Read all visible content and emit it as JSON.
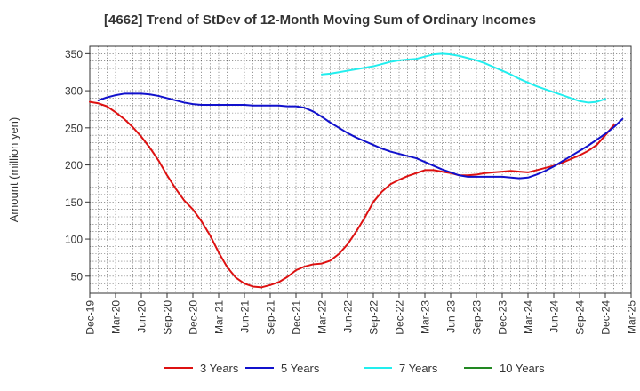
{
  "chart_data": {
    "type": "line",
    "title": "[4662]  Trend of StDev of 12-Month Moving Sum of Ordinary Incomes",
    "xlabel": "",
    "ylabel": "Amount (million yen)",
    "ylim": [
      27,
      360
    ],
    "yticks": [
      50,
      100,
      150,
      200,
      250,
      300,
      350
    ],
    "xlim": [
      "2019-12",
      "2025-03"
    ],
    "xticks": [
      "Dec-19",
      "Mar-20",
      "Jun-20",
      "Sep-20",
      "Dec-20",
      "Mar-21",
      "Jun-21",
      "Sep-21",
      "Dec-21",
      "Mar-22",
      "Jun-22",
      "Sep-22",
      "Dec-22",
      "Mar-23",
      "Jun-23",
      "Sep-23",
      "Dec-23",
      "Mar-24",
      "Jun-24",
      "Sep-24",
      "Dec-24",
      "Mar-25"
    ],
    "grid": true,
    "legend_position": "bottom",
    "series": [
      {
        "name": "3 Years",
        "color": "#dd1111",
        "points": [
          [
            "2019-12",
            285
          ],
          [
            "2020-01",
            283
          ],
          [
            "2020-02",
            279
          ],
          [
            "2020-03",
            271
          ],
          [
            "2020-04",
            262
          ],
          [
            "2020-05",
            251
          ],
          [
            "2020-06",
            238
          ],
          [
            "2020-07",
            223
          ],
          [
            "2020-08",
            206
          ],
          [
            "2020-09",
            186
          ],
          [
            "2020-10",
            168
          ],
          [
            "2020-11",
            152
          ],
          [
            "2020-12",
            140
          ],
          [
            "2021-01",
            124
          ],
          [
            "2021-02",
            105
          ],
          [
            "2021-03",
            82
          ],
          [
            "2021-04",
            62
          ],
          [
            "2021-05",
            48
          ],
          [
            "2021-06",
            40
          ],
          [
            "2021-07",
            36
          ],
          [
            "2021-08",
            35
          ],
          [
            "2021-09",
            38
          ],
          [
            "2021-10",
            42
          ],
          [
            "2021-11",
            49
          ],
          [
            "2021-12",
            58
          ],
          [
            "2022-01",
            63
          ],
          [
            "2022-02",
            66
          ],
          [
            "2022-03",
            67
          ],
          [
            "2022-04",
            71
          ],
          [
            "2022-05",
            80
          ],
          [
            "2022-06",
            93
          ],
          [
            "2022-07",
            110
          ],
          [
            "2022-08",
            129
          ],
          [
            "2022-09",
            150
          ],
          [
            "2022-10",
            164
          ],
          [
            "2022-11",
            174
          ],
          [
            "2022-12",
            180
          ],
          [
            "2023-01",
            185
          ],
          [
            "2023-02",
            189
          ],
          [
            "2023-03",
            193
          ],
          [
            "2023-04",
            193
          ],
          [
            "2023-05",
            191
          ],
          [
            "2023-06",
            189
          ],
          [
            "2023-07",
            186
          ],
          [
            "2023-08",
            186
          ],
          [
            "2023-09",
            187
          ],
          [
            "2023-10",
            189
          ],
          [
            "2023-11",
            190
          ],
          [
            "2023-12",
            191
          ],
          [
            "2024-01",
            192
          ],
          [
            "2024-02",
            191
          ],
          [
            "2024-03",
            190
          ],
          [
            "2024-04",
            193
          ],
          [
            "2024-05",
            196
          ],
          [
            "2024-06",
            199
          ],
          [
            "2024-07",
            203
          ],
          [
            "2024-08",
            208
          ],
          [
            "2024-09",
            213
          ],
          [
            "2024-10",
            219
          ],
          [
            "2024-11",
            227
          ],
          [
            "2024-12",
            240
          ],
          [
            "2025-01",
            254
          ]
        ]
      },
      {
        "name": "5 Years",
        "color": "#1111cc",
        "points": [
          [
            "2020-01",
            287
          ],
          [
            "2020-02",
            291
          ],
          [
            "2020-03",
            294
          ],
          [
            "2020-04",
            296
          ],
          [
            "2020-05",
            296
          ],
          [
            "2020-06",
            296
          ],
          [
            "2020-07",
            295
          ],
          [
            "2020-08",
            293
          ],
          [
            "2020-09",
            290
          ],
          [
            "2020-10",
            287
          ],
          [
            "2020-11",
            284
          ],
          [
            "2020-12",
            282
          ],
          [
            "2021-01",
            281
          ],
          [
            "2021-02",
            281
          ],
          [
            "2021-03",
            281
          ],
          [
            "2021-04",
            281
          ],
          [
            "2021-05",
            281
          ],
          [
            "2021-06",
            281
          ],
          [
            "2021-07",
            280
          ],
          [
            "2021-08",
            280
          ],
          [
            "2021-09",
            280
          ],
          [
            "2021-10",
            280
          ],
          [
            "2021-11",
            279
          ],
          [
            "2021-12",
            279
          ],
          [
            "2022-01",
            277
          ],
          [
            "2022-02",
            272
          ],
          [
            "2022-03",
            265
          ],
          [
            "2022-04",
            257
          ],
          [
            "2022-05",
            250
          ],
          [
            "2022-06",
            243
          ],
          [
            "2022-07",
            237
          ],
          [
            "2022-08",
            232
          ],
          [
            "2022-09",
            227
          ],
          [
            "2022-10",
            222
          ],
          [
            "2022-11",
            218
          ],
          [
            "2022-12",
            215
          ],
          [
            "2023-01",
            212
          ],
          [
            "2023-02",
            209
          ],
          [
            "2023-03",
            204
          ],
          [
            "2023-04",
            199
          ],
          [
            "2023-05",
            194
          ],
          [
            "2023-06",
            190
          ],
          [
            "2023-07",
            186
          ],
          [
            "2023-08",
            184
          ],
          [
            "2023-09",
            184
          ],
          [
            "2023-10",
            184
          ],
          [
            "2023-11",
            184
          ],
          [
            "2023-12",
            184
          ],
          [
            "2024-01",
            183
          ],
          [
            "2024-02",
            182
          ],
          [
            "2024-03",
            183
          ],
          [
            "2024-04",
            187
          ],
          [
            "2024-05",
            192
          ],
          [
            "2024-06",
            198
          ],
          [
            "2024-07",
            205
          ],
          [
            "2024-08",
            212
          ],
          [
            "2024-09",
            219
          ],
          [
            "2024-10",
            226
          ],
          [
            "2024-11",
            234
          ],
          [
            "2024-12",
            242
          ],
          [
            "2025-01",
            251
          ],
          [
            "2025-02",
            262
          ]
        ]
      },
      {
        "name": "7 Years",
        "color": "#22eeee",
        "points": [
          [
            "2022-03",
            322
          ],
          [
            "2022-04",
            323
          ],
          [
            "2022-05",
            325
          ],
          [
            "2022-06",
            327
          ],
          [
            "2022-07",
            329
          ],
          [
            "2022-08",
            331
          ],
          [
            "2022-09",
            333
          ],
          [
            "2022-10",
            336
          ],
          [
            "2022-11",
            339
          ],
          [
            "2022-12",
            341
          ],
          [
            "2023-01",
            342
          ],
          [
            "2023-02",
            343
          ],
          [
            "2023-03",
            346
          ],
          [
            "2023-04",
            349
          ],
          [
            "2023-05",
            350
          ],
          [
            "2023-06",
            349
          ],
          [
            "2023-07",
            347
          ],
          [
            "2023-08",
            344
          ],
          [
            "2023-09",
            341
          ],
          [
            "2023-10",
            337
          ],
          [
            "2023-11",
            332
          ],
          [
            "2023-12",
            327
          ],
          [
            "2024-01",
            322
          ],
          [
            "2024-02",
            316
          ],
          [
            "2024-03",
            311
          ],
          [
            "2024-04",
            306
          ],
          [
            "2024-05",
            302
          ],
          [
            "2024-06",
            298
          ],
          [
            "2024-07",
            294
          ],
          [
            "2024-08",
            290
          ],
          [
            "2024-09",
            286
          ],
          [
            "2024-10",
            284
          ],
          [
            "2024-11",
            285
          ],
          [
            "2024-12",
            289
          ]
        ]
      },
      {
        "name": "10 Years",
        "color": "#228822",
        "points": []
      }
    ]
  }
}
